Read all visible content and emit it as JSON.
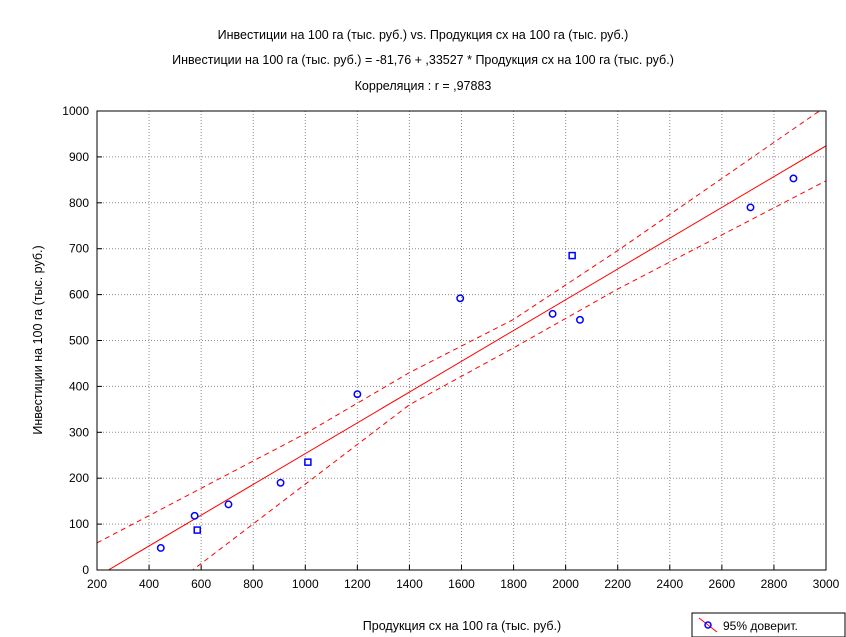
{
  "chart_data": {
    "type": "scatter",
    "title": "Инвестиции на 100 га (тыс. руб.) vs. Продукция сх на 100 га (тыс. руб.)",
    "subtitle": "Инвестиции на 100 га (тыс. руб.) = -81,76 + ,33527 * Продукция сх на 100 га (тыс. руб.)",
    "correlation_label": "Корреляция : r = ,97883",
    "xlabel": "Продукция сх на 100 га (тыс. руб.)",
    "ylabel": "Инвестиции на 100 га (тыс. руб.)",
    "xlim": [
      200,
      3000
    ],
    "ylim": [
      0,
      1000
    ],
    "xticks": [
      200,
      400,
      600,
      800,
      1000,
      1200,
      1400,
      1600,
      1800,
      2000,
      2200,
      2400,
      2600,
      2800,
      3000
    ],
    "yticks": [
      0,
      100,
      200,
      300,
      400,
      500,
      600,
      700,
      800,
      900,
      1000
    ],
    "grid": true,
    "regression": {
      "intercept": -81.76,
      "slope": 0.33527,
      "color": "#ff0000"
    },
    "confidence_band": {
      "upper": [
        [
          200,
          59
        ],
        [
          1000,
          297
        ],
        [
          1400,
          430
        ],
        [
          1800,
          546
        ],
        [
          2200,
          696
        ],
        [
          3000,
          1010
        ]
      ],
      "lower": [
        [
          200,
          -159
        ],
        [
          1000,
          187
        ],
        [
          1400,
          360
        ],
        [
          1800,
          484
        ],
        [
          2200,
          612
        ],
        [
          3000,
          848
        ]
      ],
      "color": "#ff0000"
    },
    "points": [
      {
        "x": 445,
        "y": 48,
        "marker": "circle"
      },
      {
        "x": 575,
        "y": 118,
        "marker": "circle"
      },
      {
        "x": 585,
        "y": 87,
        "marker": "square"
      },
      {
        "x": 705,
        "y": 143,
        "marker": "circle"
      },
      {
        "x": 905,
        "y": 190,
        "marker": "circle"
      },
      {
        "x": 1010,
        "y": 235,
        "marker": "square"
      },
      {
        "x": 1200,
        "y": 383,
        "marker": "circle"
      },
      {
        "x": 1595,
        "y": 592,
        "marker": "circle"
      },
      {
        "x": 1950,
        "y": 558,
        "marker": "circle"
      },
      {
        "x": 2025,
        "y": 685,
        "marker": "square"
      },
      {
        "x": 2055,
        "y": 545,
        "marker": "circle"
      },
      {
        "x": 2710,
        "y": 790,
        "marker": "circle"
      },
      {
        "x": 2875,
        "y": 853,
        "marker": "circle"
      }
    ],
    "point_color": "#0000ff",
    "legend": {
      "label": "95% доверит.",
      "position": "bottom-right"
    }
  }
}
